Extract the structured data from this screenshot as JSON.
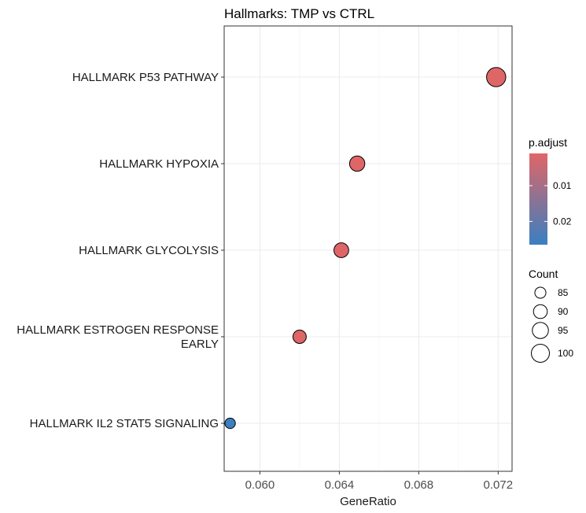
{
  "chart_data": {
    "type": "scatter",
    "title": "Hallmarks: TMP vs CTRL",
    "xlabel": "GeneRatio",
    "ylabel": "",
    "xlim": [
      0.0582,
      0.0727
    ],
    "x_ticks": [
      "0.060",
      "0.064",
      "0.068",
      "0.072"
    ],
    "x_tick_values": [
      0.06,
      0.064,
      0.068,
      0.072
    ],
    "grid": true,
    "categories": [
      [
        "HALLMARK P53 PATHWAY"
      ],
      [
        "HALLMARK HYPOXIA"
      ],
      [
        "HALLMARK GLYCOLYSIS"
      ],
      [
        "HALLMARK ESTROGEN RESPONSE",
        "EARLY"
      ],
      [
        "HALLMARK IL2 STAT5 SIGNALING"
      ]
    ],
    "points": [
      {
        "gene_ratio": 0.0719,
        "count": 103,
        "p_adjust": 0.0011
      },
      {
        "gene_ratio": 0.0649,
        "count": 93,
        "p_adjust": 0.0012
      },
      {
        "gene_ratio": 0.0641,
        "count": 92,
        "p_adjust": 0.0013
      },
      {
        "gene_ratio": 0.062,
        "count": 89,
        "p_adjust": 0.0014
      },
      {
        "gene_ratio": 0.0585,
        "count": 84,
        "p_adjust": 0.0265
      }
    ],
    "color_legend": {
      "title": "p.adjust",
      "ticks": [
        "0.01",
        "0.02"
      ],
      "tick_values": [
        0.01,
        0.02
      ],
      "range": [
        0.001,
        0.0265
      ],
      "low_color": "#e06666",
      "high_color": "#3a7fc1"
    },
    "size_legend": {
      "title": "Count",
      "entries": [
        85,
        90,
        95,
        100
      ]
    },
    "legend_position": "right"
  }
}
